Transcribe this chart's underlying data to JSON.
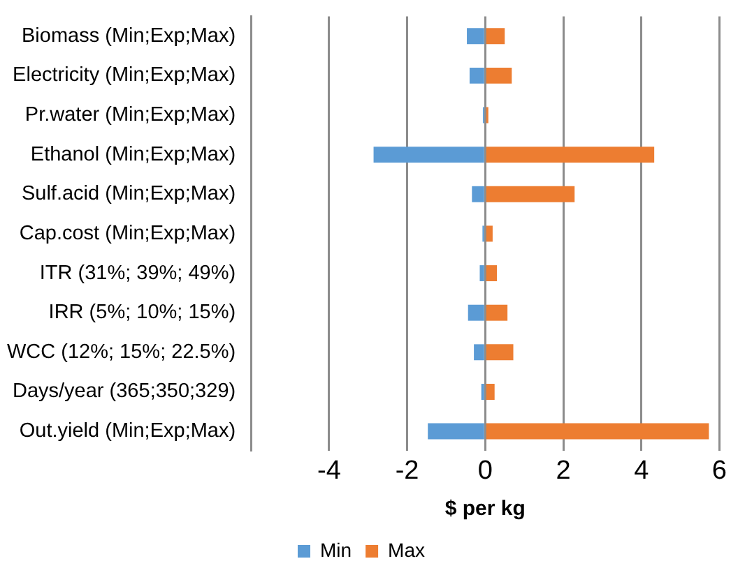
{
  "chart_data": {
    "type": "bar",
    "orientation": "horizontal",
    "stacked": true,
    "xlabel": "$ per kg",
    "categories": [
      "Biomass (Min;Exp;Max)",
      "Electricity (Min;Exp;Max)",
      "Pr.water (Min;Exp;Max)",
      "Ethanol (Min;Exp;Max)",
      "Sulf.acid (Min;Exp;Max)",
      "Cap.cost (Min;Exp;Max)",
      "ITR (31%; 39%; 49%)",
      "IRR (5%; 10%; 15%)",
      "WCC (12%; 15%; 22.5%)",
      "Days/year (365;350;329)",
      "Out.yield (Min;Exp;Max)"
    ],
    "series": [
      {
        "name": "Min",
        "color": "#5b9bd5",
        "values": [
          -0.47,
          -0.4,
          -0.06,
          -2.86,
          -0.34,
          -0.07,
          -0.14,
          -0.44,
          -0.29,
          -0.1,
          -1.47
        ]
      },
      {
        "name": "Max",
        "color": "#ed7d31",
        "values": [
          0.5,
          0.68,
          0.08,
          4.33,
          2.29,
          0.19,
          0.3,
          0.57,
          0.72,
          0.24,
          5.73
        ]
      }
    ],
    "xlim": [
      -6,
      6
    ],
    "xticks": [
      -4,
      -2,
      0,
      2,
      4,
      6
    ],
    "grid": "x",
    "legend": "bottom"
  }
}
